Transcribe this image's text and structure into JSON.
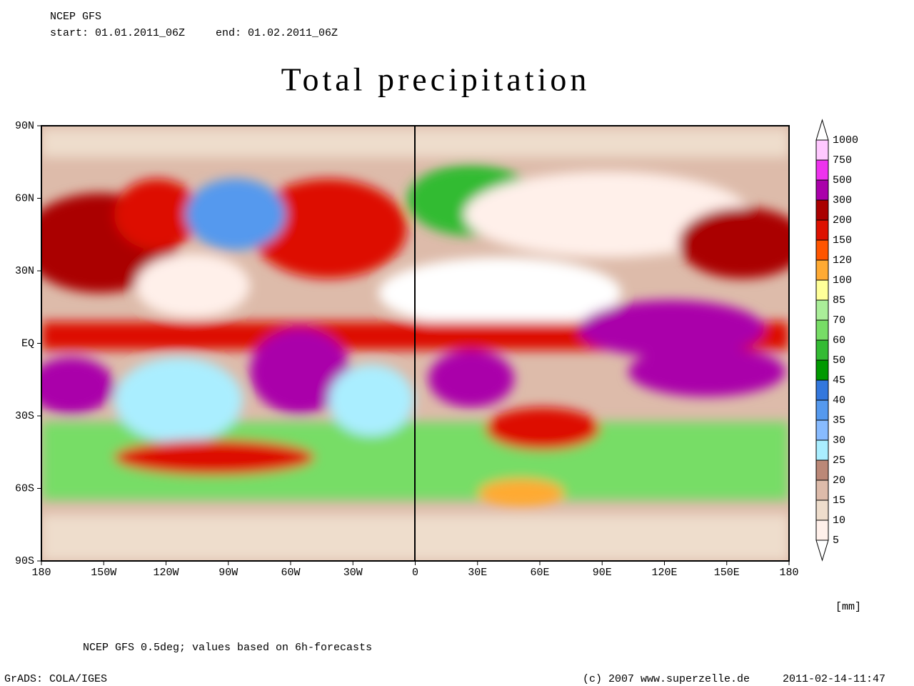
{
  "header": {
    "model": "NCEP GFS",
    "start": "start: 01.01.2011_06Z",
    "end": "end: 01.02.2011_06Z"
  },
  "title": "Total precipitation",
  "map": {
    "lat_labels": [
      "90N",
      "60N",
      "30N",
      "EQ",
      "30S",
      "60S",
      "90S"
    ],
    "lon_labels": [
      "180",
      "150W",
      "120W",
      "90W",
      "60W",
      "30W",
      "0",
      "30E",
      "60E",
      "90E",
      "120E",
      "150E",
      "180"
    ]
  },
  "colorbar": {
    "levels": [
      1000,
      750,
      500,
      300,
      200,
      150,
      120,
      100,
      85,
      70,
      60,
      50,
      45,
      40,
      35,
      30,
      25,
      20,
      15,
      10,
      5
    ],
    "colors": [
      "#ffffff",
      "#ffc8ff",
      "#ee33ee",
      "#aa00aa",
      "#aa0000",
      "#dd1100",
      "#ff5500",
      "#ffaa33",
      "#ffff99",
      "#aaee99",
      "#77dd66",
      "#33bb33",
      "#009900",
      "#3377dd",
      "#5599ee",
      "#88bbff",
      "#aaeeff",
      "#bb8877",
      "#ddbbaa",
      "#eeddcc",
      "#fff0ea",
      "#ffffff"
    ],
    "unit": "[mm]"
  },
  "footer": {
    "note": "NCEP GFS 0.5deg; values based on 6h-forecasts",
    "grads": "GrADS: COLA/IGES",
    "copyright": "(c) 2007 www.superzelle.de",
    "timestamp": "2011-02-14-11:47"
  }
}
